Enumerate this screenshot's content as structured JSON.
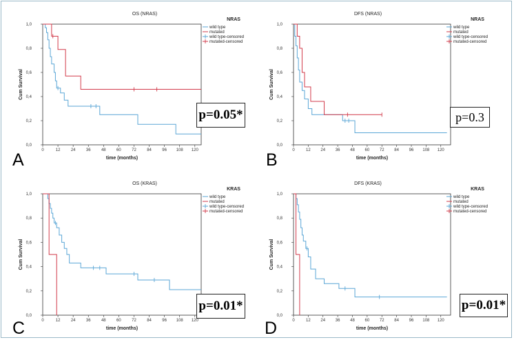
{
  "colors": {
    "wild": "#5aa6d6",
    "mut": "#d23a4a"
  },
  "chart_data": [
    {
      "type": "line",
      "panel_label": "A",
      "title": "OS (NRAS)",
      "xlabel": "time (months)",
      "ylabel": "Cum Survival",
      "xticks": [
        "0",
        "12",
        "24",
        "36",
        "48",
        "60",
        "72",
        "84",
        "96",
        "108",
        "120"
      ],
      "yticks": [
        "0,0",
        "0,2",
        "0,4",
        "0,6",
        "0,8",
        "1,0"
      ],
      "xlim": [
        0,
        125
      ],
      "ylim": [
        0,
        1
      ],
      "legend_title": "NRAS",
      "legend": [
        "wild type",
        "mutated",
        "wild type-censored",
        "mutated-censored"
      ],
      "pvalue": "p=0.05*",
      "pvalue_bold": true,
      "series": [
        {
          "name": "wild type",
          "color": "wild",
          "steps": [
            [
              0,
              1.0
            ],
            [
              2,
              0.97
            ],
            [
              3,
              0.93
            ],
            [
              4,
              0.87
            ],
            [
              5,
              0.8
            ],
            [
              6,
              0.73
            ],
            [
              7,
              0.67
            ],
            [
              9,
              0.6
            ],
            [
              10,
              0.53
            ],
            [
              11,
              0.47
            ],
            [
              14,
              0.43
            ],
            [
              17,
              0.37
            ],
            [
              20,
              0.32
            ],
            [
              40,
              0.32
            ],
            [
              45,
              0.25
            ],
            [
              70,
              0.25
            ],
            [
              75,
              0.17
            ],
            [
              102,
              0.17
            ],
            [
              105,
              0.09
            ],
            [
              125,
              0.09
            ]
          ],
          "censored": [
            [
              12,
              0.47
            ],
            [
              38,
              0.32
            ],
            [
              42,
              0.32
            ]
          ]
        },
        {
          "name": "mutated",
          "color": "mut",
          "steps": [
            [
              0,
              1.0
            ],
            [
              7,
              0.9
            ],
            [
              12,
              0.79
            ],
            [
              18,
              0.57
            ],
            [
              30,
              0.46
            ],
            [
              125,
              0.46
            ]
          ],
          "censored": [
            [
              8,
              0.9
            ],
            [
              72,
              0.46
            ],
            [
              90,
              0.46
            ]
          ]
        }
      ]
    },
    {
      "type": "line",
      "panel_label": "B",
      "title": "DFS (NRAS)",
      "xlabel": "time (months)",
      "ylabel": "Cum Survival",
      "xticks": [
        "0",
        "12",
        "24",
        "36",
        "48",
        "60",
        "72",
        "84",
        "96",
        "108",
        "120"
      ],
      "yticks": [
        "0,0",
        "0,2",
        "0,4",
        "0,6",
        "0,8",
        "1,0"
      ],
      "xlim": [
        0,
        128
      ],
      "ylim": [
        0,
        1
      ],
      "legend_title": "NRAS",
      "legend": [
        "wild type",
        "mutated",
        "wild type-censored",
        "mutated-censored"
      ],
      "pvalue": "p=0.3",
      "pvalue_bold": false,
      "series": [
        {
          "name": "wild type",
          "color": "wild",
          "steps": [
            [
              0,
              1.0
            ],
            [
              1,
              0.9
            ],
            [
              2,
              0.82
            ],
            [
              3,
              0.72
            ],
            [
              4,
              0.62
            ],
            [
              5,
              0.52
            ],
            [
              7,
              0.45
            ],
            [
              9,
              0.38
            ],
            [
              12,
              0.3
            ],
            [
              15,
              0.25
            ],
            [
              40,
              0.2
            ],
            [
              50,
              0.1
            ],
            [
              125,
              0.1
            ]
          ],
          "censored": [
            [
              42,
              0.2
            ],
            [
              45,
              0.2
            ]
          ]
        },
        {
          "name": "mutated",
          "color": "mut",
          "steps": [
            [
              0,
              1.0
            ],
            [
              3,
              0.9
            ],
            [
              5,
              0.8
            ],
            [
              7,
              0.6
            ],
            [
              9,
              0.48
            ],
            [
              14,
              0.36
            ],
            [
              25,
              0.25
            ],
            [
              72,
              0.25
            ]
          ],
          "censored": [
            [
              44,
              0.25
            ],
            [
              72,
              0.25
            ]
          ]
        }
      ]
    },
    {
      "type": "line",
      "panel_label": "C",
      "title": "OS (KRAS)",
      "xlabel": "time (months)",
      "ylabel": "Cum Survival",
      "xticks": [
        "0",
        "12",
        "24",
        "36",
        "48",
        "60",
        "72",
        "84",
        "96",
        "108",
        "120"
      ],
      "yticks": [
        "0,0",
        "0,2",
        "0,4",
        "0,6",
        "0,8",
        "1,0"
      ],
      "xlim": [
        0,
        125
      ],
      "ylim": [
        0,
        1
      ],
      "legend_title": "KRAS",
      "legend": [
        "wild type",
        "mutated",
        "wild type-censored",
        "mutated-censored"
      ],
      "pvalue": "p=0.01*",
      "pvalue_bold": true,
      "series": [
        {
          "name": "wild type",
          "color": "wild",
          "steps": [
            [
              0,
              1.0
            ],
            [
              4,
              0.96
            ],
            [
              5,
              0.92
            ],
            [
              6,
              0.88
            ],
            [
              7,
              0.84
            ],
            [
              8,
              0.8
            ],
            [
              9,
              0.76
            ],
            [
              11,
              0.72
            ],
            [
              13,
              0.66
            ],
            [
              15,
              0.6
            ],
            [
              17,
              0.55
            ],
            [
              19,
              0.5
            ],
            [
              21,
              0.43
            ],
            [
              30,
              0.39
            ],
            [
              50,
              0.34
            ],
            [
              75,
              0.29
            ],
            [
              100,
              0.21
            ],
            [
              125,
              0.21
            ]
          ],
          "censored": [
            [
              10,
              0.76
            ],
            [
              40,
              0.39
            ],
            [
              45,
              0.39
            ],
            [
              72,
              0.34
            ],
            [
              88,
              0.29
            ]
          ]
        },
        {
          "name": "mutated",
          "color": "mut",
          "steps": [
            [
              0,
              1.0
            ],
            [
              5,
              0.5
            ],
            [
              11,
              0.0
            ]
          ],
          "censored": []
        }
      ]
    },
    {
      "type": "line",
      "panel_label": "D",
      "title": "DFS (KRAS)",
      "xlabel": "time (months)",
      "ylabel": "Cum Survival",
      "xticks": [
        "0",
        "12",
        "24",
        "36",
        "48",
        "60",
        "72",
        "84",
        "96",
        "108",
        "120"
      ],
      "yticks": [
        "0,0",
        "0,2",
        "0,4",
        "0,6",
        "0,8",
        "1,0"
      ],
      "xlim": [
        0,
        128
      ],
      "ylim": [
        0,
        1
      ],
      "legend_title": "KRAS",
      "legend": [
        "wild type",
        "mutated",
        "wild type-censored",
        "mutated-censored"
      ],
      "pvalue": "p=0.01*",
      "pvalue_bold": true,
      "series": [
        {
          "name": "wild type",
          "color": "wild",
          "steps": [
            [
              0,
              1.0
            ],
            [
              2,
              0.96
            ],
            [
              3,
              0.91
            ],
            [
              4,
              0.85
            ],
            [
              5,
              0.79
            ],
            [
              6,
              0.72
            ],
            [
              7,
              0.66
            ],
            [
              8,
              0.61
            ],
            [
              10,
              0.55
            ],
            [
              12,
              0.48
            ],
            [
              14,
              0.38
            ],
            [
              18,
              0.3
            ],
            [
              25,
              0.26
            ],
            [
              37,
              0.22
            ],
            [
              50,
              0.15
            ],
            [
              125,
              0.15
            ]
          ],
          "censored": [
            [
              11,
              0.55
            ],
            [
              42,
              0.22
            ],
            [
              70,
              0.15
            ]
          ]
        },
        {
          "name": "mutated",
          "color": "mut",
          "steps": [
            [
              0,
              1.0
            ],
            [
              2,
              0.5
            ],
            [
              5,
              0.0
            ]
          ],
          "censored": []
        }
      ]
    }
  ]
}
